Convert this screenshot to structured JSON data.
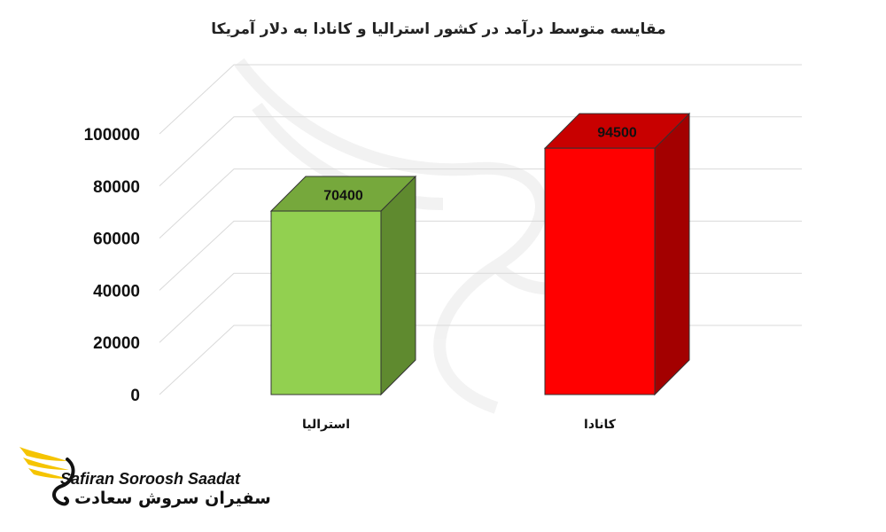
{
  "chart_data": {
    "type": "bar",
    "title": "مقایسه متوسط درآمد در کشور استرالیا و کانادا به دلار آمریکا",
    "categories": [
      "استرالیا",
      "کانادا"
    ],
    "values": [
      70400,
      94500
    ],
    "data_labels": [
      "70400",
      "94500"
    ],
    "y_ticks": [
      "0",
      "20000",
      "40000",
      "60000",
      "80000",
      "100000"
    ],
    "ylim": [
      0,
      100000
    ],
    "colors": [
      "#92d050",
      "#ff0000"
    ],
    "grid": true,
    "style": "3d"
  },
  "branding": {
    "name_en": "Safiran Soroosh Saadat",
    "name_fa": "سفیران سروش سعادت",
    "logo_icon": "bird-wing-logo",
    "logo_color": "#f5c400"
  }
}
